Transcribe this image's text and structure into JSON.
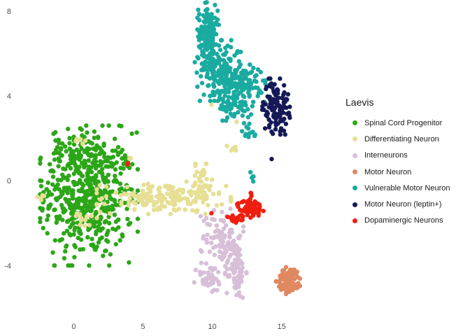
{
  "chart_data": {
    "type": "scatter",
    "title": "",
    "xlabel": "",
    "ylabel": "",
    "xlim": [
      -3.3,
      18.0
    ],
    "ylim": [
      -6.4,
      8.2
    ],
    "x_ticks": [
      0,
      5,
      10,
      15
    ],
    "y_ticks": [
      -4,
      0,
      4,
      8
    ],
    "grid": false,
    "legend": {
      "title": "Laevis",
      "placement": "right"
    },
    "series": [
      {
        "name": "Spinal Cord Progenitor",
        "color": "#2ca618",
        "clusters": [
          {
            "center": [
              1.1,
              -0.7
            ],
            "spread": [
              1.6,
              1.5
            ],
            "n": 520
          },
          {
            "center": [
              0.0,
              1.4
            ],
            "spread": [
              0.8,
              0.5
            ],
            "n": 60
          },
          {
            "center": [
              -2.0,
              -0.7
            ],
            "spread": [
              0.25,
              0.15
            ],
            "n": 6
          },
          {
            "center": [
              4.0,
              0.9
            ],
            "spread": [
              0.15,
              0.15
            ],
            "n": 4
          },
          {
            "center": [
              4.1,
              -0.9
            ],
            "spread": [
              0.1,
              0.1
            ],
            "n": 2
          }
        ]
      },
      {
        "name": "Differentiating Neuron",
        "color": "#e6df94",
        "clusters": [
          {
            "center": [
              6.5,
              -0.8
            ],
            "spread": [
              2.2,
              0.35
            ],
            "n": 170
          },
          {
            "center": [
              9.2,
              -0.3
            ],
            "spread": [
              0.4,
              0.5
            ],
            "n": 40
          },
          {
            "center": [
              0.4,
              1.9
            ],
            "spread": [
              0.2,
              0.1
            ],
            "n": 6
          },
          {
            "center": [
              -2.3,
              -0.7
            ],
            "spread": [
              0.15,
              0.15
            ],
            "n": 5
          },
          {
            "center": [
              0.8,
              -1.9
            ],
            "spread": [
              0.5,
              0.2
            ],
            "n": 12
          },
          {
            "center": [
              4.0,
              1.0
            ],
            "spread": [
              0.1,
              0.1
            ],
            "n": 3
          },
          {
            "center": [
              11.5,
              1.5
            ],
            "spread": [
              0.2,
              0.15
            ],
            "n": 5
          },
          {
            "center": [
              9.9,
              3.6
            ],
            "spread": [
              0.05,
              0.05
            ],
            "n": 1
          },
          {
            "center": [
              11.8,
              2.8
            ],
            "spread": [
              0.05,
              0.05
            ],
            "n": 1
          }
        ]
      },
      {
        "name": "Interneurons",
        "color": "#d8bfd8",
        "clusters": [
          {
            "center": [
              10.7,
              -2.6
            ],
            "spread": [
              0.7,
              0.7
            ],
            "n": 90
          },
          {
            "center": [
              11.7,
              -4.2
            ],
            "spread": [
              0.35,
              0.7
            ],
            "n": 80
          },
          {
            "center": [
              9.8,
              -4.6
            ],
            "spread": [
              0.5,
              0.35
            ],
            "n": 40
          }
        ]
      },
      {
        "name": "Motor Neuron",
        "color": "#e08860",
        "clusters": [
          {
            "center": [
              15.6,
              -4.7
            ],
            "spread": [
              0.45,
              0.3
            ],
            "n": 90
          }
        ]
      },
      {
        "name": "Vulnerable Motor Neuron",
        "color": "#1aaba0",
        "clusters": [
          {
            "center": [
              9.7,
              7.1
            ],
            "spread": [
              0.35,
              0.6
            ],
            "n": 150
          },
          {
            "center": [
              10.5,
              5.2
            ],
            "spread": [
              0.8,
              0.65
            ],
            "n": 180
          },
          {
            "center": [
              12.3,
              4.6
            ],
            "spread": [
              0.7,
              0.4
            ],
            "n": 100
          },
          {
            "center": [
              11.7,
              3.5
            ],
            "spread": [
              0.6,
              0.3
            ],
            "n": 60
          },
          {
            "center": [
              12.7,
              2.3
            ],
            "spread": [
              0.3,
              0.3
            ],
            "n": 14
          },
          {
            "center": [
              12.9,
              0.3
            ],
            "spread": [
              0.1,
              0.15
            ],
            "n": 6
          }
        ]
      },
      {
        "name": "Motor Neuron (leptin+)",
        "color": "#151a57",
        "clusters": [
          {
            "center": [
              14.6,
              3.5
            ],
            "spread": [
              0.45,
              0.6
            ],
            "n": 120
          },
          {
            "center": [
              14.2,
              1.1
            ],
            "spread": [
              0.05,
              0.05
            ],
            "n": 1
          }
        ]
      },
      {
        "name": "Dopaminergic Neurons",
        "color": "#f01e0e",
        "clusters": [
          {
            "center": [
              12.7,
              -1.3
            ],
            "spread": [
              0.45,
              0.2
            ],
            "n": 70
          },
          {
            "center": [
              11.7,
              -1.8
            ],
            "spread": [
              0.3,
              0.15
            ],
            "n": 15
          },
          {
            "center": [
              12.8,
              -0.6
            ],
            "spread": [
              0.05,
              0.1
            ],
            "n": 3
          },
          {
            "center": [
              3.9,
              0.8
            ],
            "spread": [
              0.05,
              0.05
            ],
            "n": 2
          },
          {
            "center": [
              10.0,
              -1.5
            ],
            "spread": [
              0.05,
              0.05
            ],
            "n": 1
          }
        ]
      }
    ]
  }
}
